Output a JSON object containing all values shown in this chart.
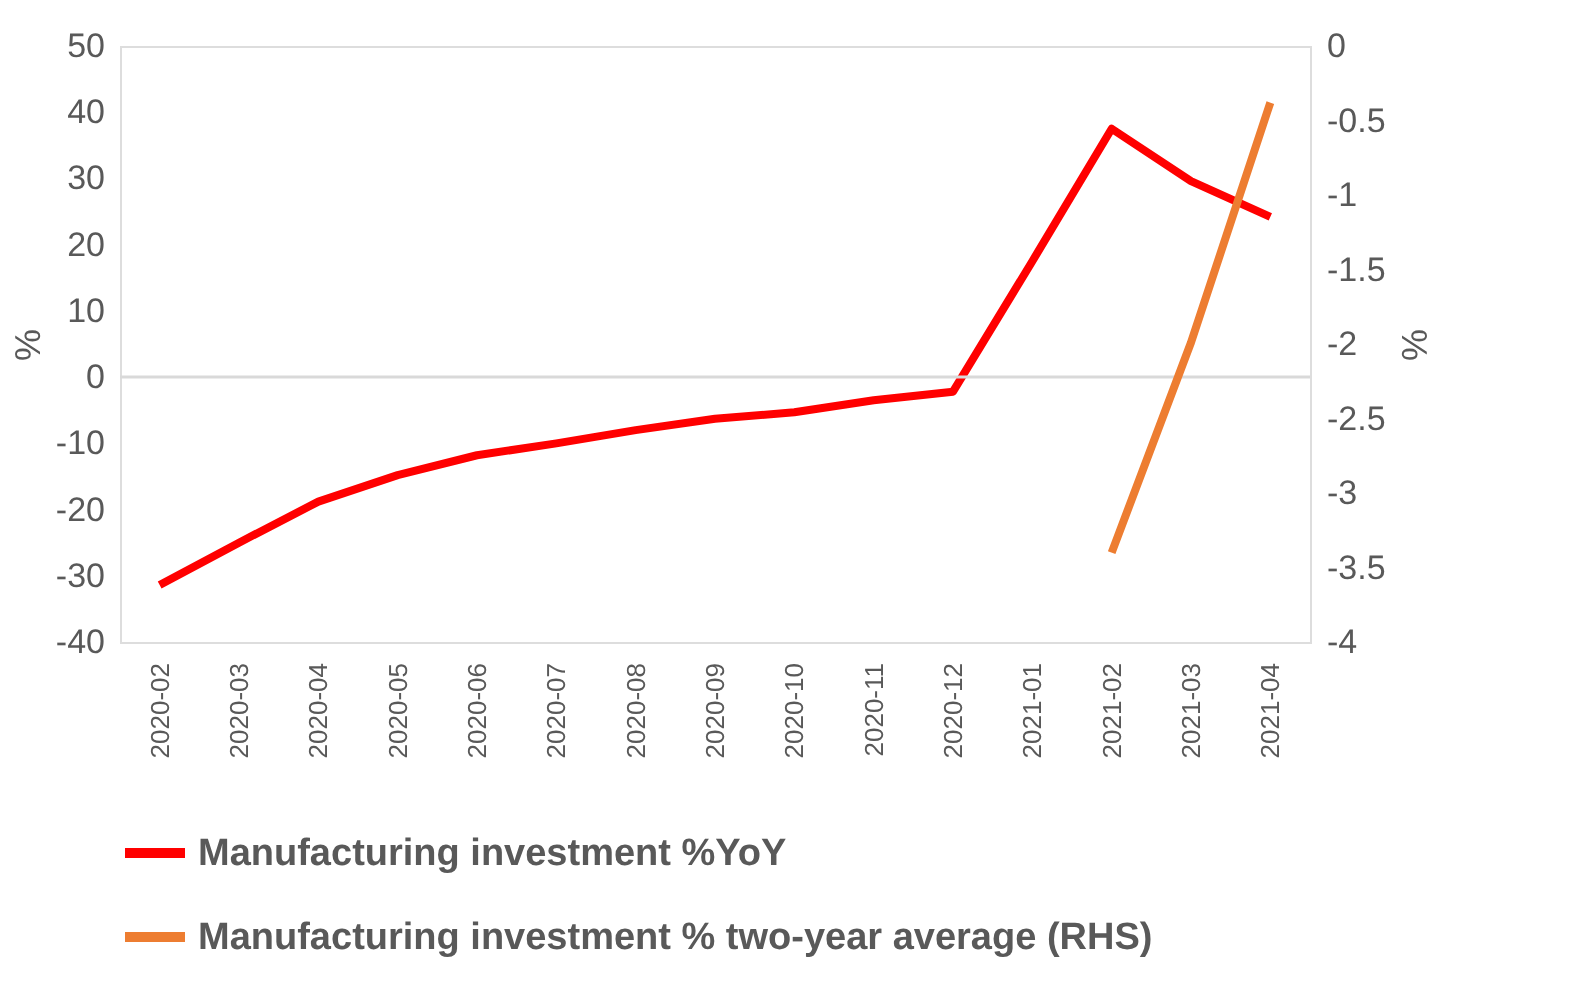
{
  "chart_data": {
    "type": "line",
    "categories": [
      "2020-02",
      "2020-03",
      "2020-04",
      "2020-05",
      "2020-06",
      "2020-07",
      "2020-08",
      "2020-09",
      "2020-10",
      "2020-11",
      "2020-12",
      "2021-01",
      "2021-02",
      "2021-03",
      "2021-04"
    ],
    "series": [
      {
        "name": "Manufacturing investment %YoY",
        "color": "#ff0000",
        "values": [
          -31.4,
          -25,
          -18.8,
          -14.8,
          -11.8,
          -10,
          -8,
          -6.3,
          -5.3,
          -3.5,
          -2.2,
          17.5,
          37.5,
          29.6,
          24.2
        ]
      },
      {
        "name": "Manufacturing investment % two-year average (RHS)",
        "color": "#ed7d31",
        "axis": "y2",
        "values": [
          null,
          null,
          null,
          null,
          null,
          null,
          null,
          null,
          null,
          null,
          null,
          null,
          -3.4,
          -1.99,
          -0.38
        ]
      }
    ],
    "ylabel": "%",
    "y2label": "%",
    "ylim": [
      -40,
      50
    ],
    "yticks": [
      -40,
      -30,
      -20,
      -10,
      0,
      10,
      20,
      30,
      40,
      50
    ],
    "y2lim": [
      -4,
      0
    ],
    "y2ticks": [
      -4,
      -3.5,
      -3,
      -2.5,
      -2,
      -1.5,
      -1,
      -0.5,
      0
    ],
    "ref_lines": [
      {
        "axis": "y",
        "value": 0,
        "color": "#d9d9d9"
      }
    ],
    "grid": false,
    "legend": "bottom",
    "marker": "none",
    "line_style": "solid"
  }
}
